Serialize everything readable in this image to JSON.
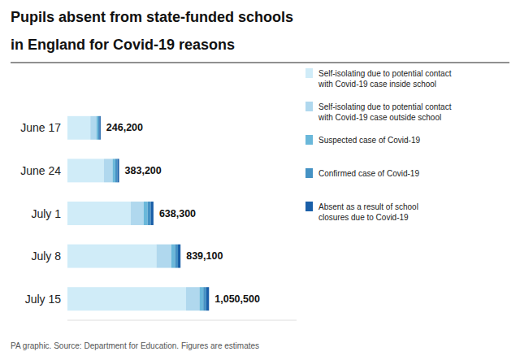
{
  "chart_data": {
    "type": "bar",
    "orientation": "horizontal",
    "stacked": true,
    "title": "Pupils absent from state-funded schools\nin England for Covid-19 reasons",
    "annotations": [
      "PA graphic. Source: Department for Education. Figures are estimates"
    ],
    "categories": [
      "June 17",
      "June 24",
      "July 1",
      "July 8",
      "July 15"
    ],
    "series": [
      {
        "name": "Self-isolating due to potential contact\nwith Covid-19 case inside school",
        "color": "#d0ecf8",
        "values": [
          170000,
          270000,
          470000,
          660000,
          880000
        ]
      },
      {
        "name": "Self-isolating due to potential contact\nwith Covid-19 case outside school",
        "color": "#b0d8ee",
        "values": [
          45000,
          65000,
          95000,
          110000,
          100000
        ]
      },
      {
        "name": "Suspected case of Covid-19",
        "color": "#6ab8da",
        "values": [
          13000,
          20000,
          30000,
          28000,
          28000
        ]
      },
      {
        "name": "Confirmed case of Covid-19",
        "color": "#4592c4",
        "values": [
          9000,
          16000,
          23000,
          22000,
          22000
        ]
      },
      {
        "name": "Absent as a result of school\nclosures due to Covid-19",
        "color": "#1a5fa8",
        "values": [
          9200,
          12200,
          20300,
          19100,
          20500
        ]
      }
    ],
    "totals": [
      246200,
      383200,
      638300,
      839100,
      1050500
    ],
    "total_labels": [
      "246,200",
      "383,200",
      "638,300",
      "839,100",
      "1,050,500"
    ],
    "xlim": [
      0,
      1700000
    ],
    "grid": false,
    "legend": "right",
    "tick_labels": "y"
  }
}
